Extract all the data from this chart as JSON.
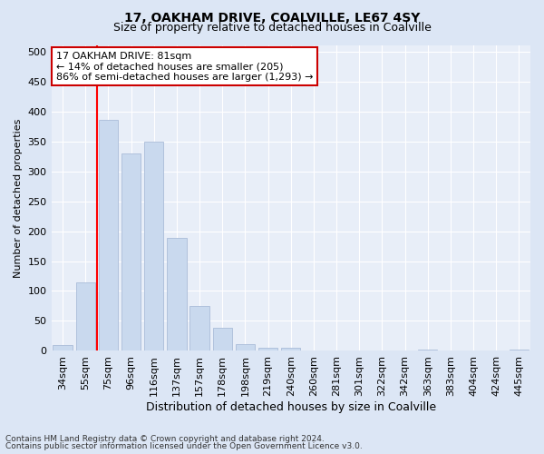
{
  "title1": "17, OAKHAM DRIVE, COALVILLE, LE67 4SY",
  "title2": "Size of property relative to detached houses in Coalville",
  "xlabel": "Distribution of detached houses by size in Coalville",
  "ylabel": "Number of detached properties",
  "categories": [
    "34sqm",
    "55sqm",
    "75sqm",
    "96sqm",
    "116sqm",
    "137sqm",
    "157sqm",
    "178sqm",
    "198sqm",
    "219sqm",
    "240sqm",
    "260sqm",
    "281sqm",
    "301sqm",
    "322sqm",
    "342sqm",
    "363sqm",
    "383sqm",
    "404sqm",
    "424sqm",
    "445sqm"
  ],
  "values": [
    10,
    115,
    385,
    330,
    350,
    188,
    75,
    38,
    12,
    6,
    5,
    1,
    0,
    0,
    0,
    0,
    2,
    0,
    0,
    0,
    2
  ],
  "bar_color": "#c9d9ee",
  "bar_edge_color": "#aabcd8",
  "red_line_x": 1.5,
  "annotation_line1": "17 OAKHAM DRIVE: 81sqm",
  "annotation_line2": "← 14% of detached houses are smaller (205)",
  "annotation_line3": "86% of semi-detached houses are larger (1,293) →",
  "annotation_box_color": "white",
  "annotation_box_edge_color": "#cc0000",
  "ylim": [
    0,
    510
  ],
  "yticks": [
    0,
    50,
    100,
    150,
    200,
    250,
    300,
    350,
    400,
    450,
    500
  ],
  "footer1": "Contains HM Land Registry data © Crown copyright and database right 2024.",
  "footer2": "Contains public sector information licensed under the Open Government Licence v3.0.",
  "bg_color": "#dce6f5",
  "plot_bg_color": "#e8eef8",
  "grid_color": "#ffffff",
  "title1_fontsize": 10,
  "title2_fontsize": 9,
  "xlabel_fontsize": 9,
  "ylabel_fontsize": 8,
  "tick_fontsize": 8,
  "annotation_fontsize": 8,
  "footer_fontsize": 6.5
}
